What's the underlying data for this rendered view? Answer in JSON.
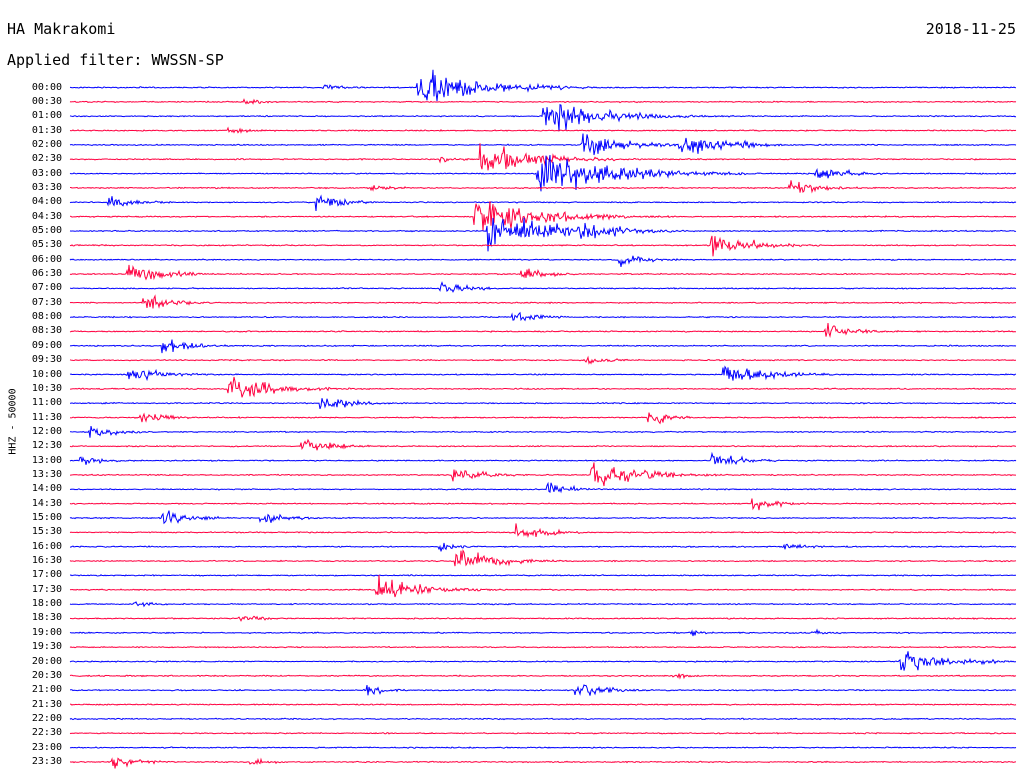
{
  "header": {
    "station": "HA Makrakomi",
    "date": "2018-11-25",
    "filter": "Applied filter: WWSSN-SP",
    "channel": "HHZ - 50000"
  },
  "chart_data": {
    "type": "line",
    "title": "HA Makrakomi",
    "subtitle": "Applied filter: WWSSN-SP",
    "ylabel": "HHZ - 50000",
    "grid": false,
    "colors": [
      "#0000ff",
      "#ff0040"
    ],
    "rows": [
      "00:00",
      "00:30",
      "01:00",
      "01:30",
      "02:00",
      "02:30",
      "03:00",
      "03:30",
      "04:00",
      "04:30",
      "05:00",
      "05:30",
      "06:00",
      "06:30",
      "07:00",
      "07:30",
      "08:00",
      "08:30",
      "09:00",
      "09:30",
      "10:00",
      "10:30",
      "11:00",
      "11:30",
      "12:00",
      "12:30",
      "13:00",
      "13:30",
      "14:00",
      "14:30",
      "15:00",
      "15:30",
      "16:00",
      "16:30",
      "17:00",
      "17:30",
      "18:00",
      "18:30",
      "19:00",
      "19:30",
      "20:00",
      "20:30",
      "21:00",
      "21:30",
      "22:00",
      "22:30",
      "23:00",
      "23:30"
    ],
    "events": [
      {
        "row": 0,
        "minute": 8.0,
        "amp": 6
      },
      {
        "row": 0,
        "minute": 11.0,
        "amp": 30
      },
      {
        "row": 1,
        "minute": 5.5,
        "amp": 5
      },
      {
        "row": 2,
        "minute": 15.0,
        "amp": 28
      },
      {
        "row": 3,
        "minute": 5.0,
        "amp": 6
      },
      {
        "row": 4,
        "minute": 16.2,
        "amp": 18
      },
      {
        "row": 4,
        "minute": 19.3,
        "amp": 18
      },
      {
        "row": 4,
        "minute": 21.3,
        "amp": 7
      },
      {
        "row": 5,
        "minute": 11.7,
        "amp": 5
      },
      {
        "row": 5,
        "minute": 13.0,
        "amp": 25
      },
      {
        "row": 6,
        "minute": 14.8,
        "amp": 35
      },
      {
        "row": 6,
        "minute": 23.6,
        "amp": 12
      },
      {
        "row": 7,
        "minute": 9.5,
        "amp": 7
      },
      {
        "row": 7,
        "minute": 22.8,
        "amp": 12
      },
      {
        "row": 8,
        "minute": 1.2,
        "amp": 10
      },
      {
        "row": 8,
        "minute": 7.8,
        "amp": 12
      },
      {
        "row": 9,
        "minute": 12.8,
        "amp": 30
      },
      {
        "row": 10,
        "minute": 13.2,
        "amp": 32
      },
      {
        "row": 10,
        "minute": 16.2,
        "amp": 18
      },
      {
        "row": 11,
        "minute": 20.3,
        "amp": 18
      },
      {
        "row": 12,
        "minute": 17.4,
        "amp": 10
      },
      {
        "row": 13,
        "minute": 1.8,
        "amp": 15
      },
      {
        "row": 13,
        "minute": 14.3,
        "amp": 10
      },
      {
        "row": 14,
        "minute": 11.7,
        "amp": 10
      },
      {
        "row": 15,
        "minute": 2.3,
        "amp": 12
      },
      {
        "row": 16,
        "minute": 14.0,
        "amp": 10
      },
      {
        "row": 17,
        "minute": 23.9,
        "amp": 12
      },
      {
        "row": 18,
        "minute": 2.9,
        "amp": 12
      },
      {
        "row": 19,
        "minute": 16.3,
        "amp": 8
      },
      {
        "row": 20,
        "minute": 1.8,
        "amp": 14
      },
      {
        "row": 20,
        "minute": 20.7,
        "amp": 18
      },
      {
        "row": 21,
        "minute": 5.0,
        "amp": 20
      },
      {
        "row": 22,
        "minute": 7.9,
        "amp": 12
      },
      {
        "row": 23,
        "minute": 2.2,
        "amp": 10
      },
      {
        "row": 23,
        "minute": 18.3,
        "amp": 10
      },
      {
        "row": 24,
        "minute": 0.6,
        "amp": 10
      },
      {
        "row": 25,
        "minute": 7.3,
        "amp": 12
      },
      {
        "row": 26,
        "minute": 0.3,
        "amp": 8
      },
      {
        "row": 26,
        "minute": 20.3,
        "amp": 12
      },
      {
        "row": 27,
        "minute": 12.1,
        "amp": 12
      },
      {
        "row": 27,
        "minute": 16.5,
        "amp": 22
      },
      {
        "row": 28,
        "minute": 15.1,
        "amp": 10
      },
      {
        "row": 29,
        "minute": 21.6,
        "amp": 10
      },
      {
        "row": 30,
        "minute": 2.9,
        "amp": 12
      },
      {
        "row": 30,
        "minute": 6.0,
        "amp": 10
      },
      {
        "row": 31,
        "minute": 14.1,
        "amp": 12
      },
      {
        "row": 32,
        "minute": 11.7,
        "amp": 7
      },
      {
        "row": 32,
        "minute": 22.6,
        "amp": 7
      },
      {
        "row": 33,
        "minute": 12.2,
        "amp": 18
      },
      {
        "row": 35,
        "minute": 9.7,
        "amp": 20
      },
      {
        "row": 36,
        "minute": 2.0,
        "amp": 6
      },
      {
        "row": 37,
        "minute": 5.3,
        "amp": 7
      },
      {
        "row": 38,
        "minute": 19.6,
        "amp": 6
      },
      {
        "row": 38,
        "minute": 23.5,
        "amp": 5
      },
      {
        "row": 40,
        "minute": 26.3,
        "amp": 20
      },
      {
        "row": 41,
        "minute": 19.1,
        "amp": 5
      },
      {
        "row": 42,
        "minute": 9.3,
        "amp": 8
      },
      {
        "row": 42,
        "minute": 16.0,
        "amp": 12
      },
      {
        "row": 47,
        "minute": 1.3,
        "amp": 10
      },
      {
        "row": 47,
        "minute": 5.7,
        "amp": 6
      }
    ]
  }
}
